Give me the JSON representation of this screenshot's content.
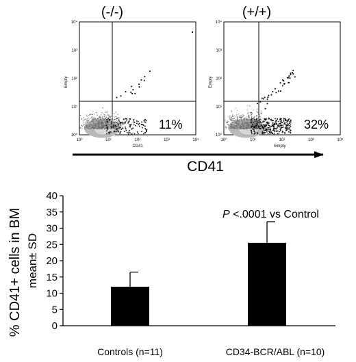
{
  "chart_data": [
    {
      "type": "scatter",
      "title": "(-/-)",
      "xlabel": "CD41",
      "ylabel": "Empty",
      "x_ticks": [
        "10⁰",
        "10¹",
        "10²",
        "10³",
        "10⁴"
      ],
      "y_ticks": [
        "10⁰",
        "10¹",
        "10²",
        "10³",
        "10⁴"
      ],
      "xlim": [
        1,
        10000
      ],
      "ylim": [
        1,
        10000
      ],
      "scale": "log",
      "quadrant_gate": {
        "x": 15,
        "y": 11
      },
      "quadrant_label": "11%"
    },
    {
      "type": "scatter",
      "title": "(+/+)",
      "xlabel": "Empty",
      "ylabel": "Empty",
      "x_ticks": [
        "10⁰",
        "10¹",
        "10²",
        "10³",
        "10⁴"
      ],
      "y_ticks": [
        "10⁰",
        "10¹",
        "10²",
        "10³",
        "10⁴"
      ],
      "xlim": [
        1,
        10000
      ],
      "ylim": [
        1,
        10000
      ],
      "scale": "log",
      "quadrant_gate": {
        "x": 15,
        "y": 11
      },
      "quadrant_label": "32%"
    },
    {
      "type": "bar",
      "categories": [
        "Controls (n=11)",
        "CD34-BCR/ABL (n=10)"
      ],
      "values": [
        12,
        25.5
      ],
      "errors": [
        4.5,
        6.5
      ],
      "ylabel_lines": [
        "% CD41+ cells in BM",
        "mean± SD"
      ],
      "ylim": [
        0,
        40
      ],
      "yticks": [
        0,
        5,
        10,
        15,
        20,
        25,
        30,
        35,
        40
      ],
      "annotation": {
        "italic": "P",
        "text": " <.0001 vs Control"
      },
      "bar_color": "#000000"
    }
  ],
  "common_axis_label": "CD41"
}
